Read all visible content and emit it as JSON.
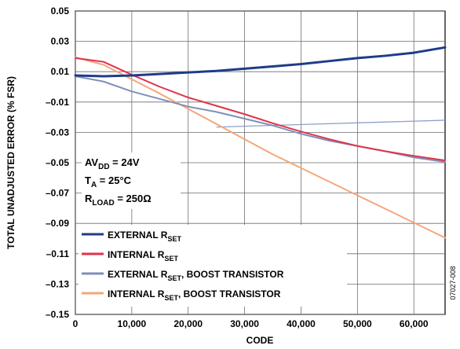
{
  "chart_data": {
    "type": "line",
    "xlabel": "CODE",
    "ylabel": "TOTAL UNADJUSTED ERROR (% FSR)",
    "xlim": [
      0,
      65535
    ],
    "ylim": [
      -0.15,
      0.05
    ],
    "xticks": [
      0,
      10000,
      20000,
      30000,
      40000,
      50000,
      60000
    ],
    "xtick_labels": [
      "0",
      "10,000",
      "20,000",
      "30,000",
      "40,000",
      "50,000",
      "60,000"
    ],
    "yticks": [
      0.05,
      0.03,
      0.01,
      -0.01,
      -0.03,
      -0.05,
      -0.07,
      -0.09,
      -0.11,
      -0.13,
      -0.15
    ],
    "ytick_labels": [
      "0.05",
      "0.03",
      "0.01",
      "–0.01",
      "–0.03",
      "–0.05",
      "–0.07",
      "–0.09",
      "–0.11",
      "–0.13",
      "–0.15"
    ],
    "grid": true,
    "legend_placement": "bottom-left",
    "conditions": {
      "avdd": {
        "main": "AV",
        "sub": "DD",
        "rest": " = 24V"
      },
      "ta": {
        "main": "T",
        "sub": "A",
        "rest": " = 25°C"
      },
      "rload": {
        "main": "R",
        "sub": "LOAD",
        "rest": " = 250Ω"
      }
    },
    "figure_id": "07027-008",
    "series": [
      {
        "name": "EXTERNAL RSET",
        "label_main": "EXTERNAL R",
        "label_sub": "SET",
        "label_rest": "",
        "color": "#1f3c88",
        "width": 3,
        "points": [
          [
            0,
            0.0075
          ],
          [
            5000,
            0.007
          ],
          [
            10000,
            0.0075
          ],
          [
            15000,
            0.0085
          ],
          [
            20000,
            0.0095
          ],
          [
            25000,
            0.0105
          ],
          [
            30000,
            0.012
          ],
          [
            35000,
            0.0135
          ],
          [
            40000,
            0.015
          ],
          [
            45000,
            0.017
          ],
          [
            50000,
            0.019
          ],
          [
            55000,
            0.0205
          ],
          [
            60000,
            0.0225
          ],
          [
            65535,
            0.026
          ]
        ]
      },
      {
        "name": "INTERNAL RSET",
        "label_main": "INTERNAL R",
        "label_sub": "SET",
        "label_rest": "",
        "color": "#e0334d",
        "width": 2,
        "points": [
          [
            0,
            0.019
          ],
          [
            5000,
            0.0165
          ],
          [
            10000,
            0.008
          ],
          [
            15000,
            0.0
          ],
          [
            20000,
            -0.007
          ],
          [
            25000,
            -0.0125
          ],
          [
            30000,
            -0.018
          ],
          [
            35000,
            -0.024
          ],
          [
            40000,
            -0.0295
          ],
          [
            45000,
            -0.0345
          ],
          [
            50000,
            -0.039
          ],
          [
            55000,
            -0.0425
          ],
          [
            60000,
            -0.0455
          ],
          [
            65535,
            -0.0485
          ]
        ]
      },
      {
        "name": "EXTERNAL RSET, BOOST TRANSISTOR",
        "label_main": "EXTERNAL R",
        "label_sub": "SET",
        "label_rest": ", BOOST TRANSISTOR",
        "color": "#7f8fb8",
        "width": 2,
        "points": [
          [
            0,
            0.007
          ],
          [
            5000,
            0.0035
          ],
          [
            10000,
            -0.003
          ],
          [
            15000,
            -0.008
          ],
          [
            20000,
            -0.013
          ],
          [
            25000,
            -0.0165
          ],
          [
            30000,
            -0.021
          ],
          [
            35000,
            -0.0255
          ],
          [
            40000,
            -0.031
          ],
          [
            45000,
            -0.0355
          ],
          [
            50000,
            -0.039
          ],
          [
            55000,
            -0.0425
          ],
          [
            60000,
            -0.0465
          ],
          [
            65535,
            -0.0495
          ]
        ]
      },
      {
        "name": "INTERNAL RSET, BOOST TRANSISTOR",
        "label_main": "INTERNAL R",
        "label_sub": "SET",
        "label_rest": ", BOOST TRANSISTOR",
        "color": "#f4a77a",
        "width": 2,
        "points": [
          [
            0,
            0.0195
          ],
          [
            5000,
            0.0145
          ],
          [
            10000,
            0.005
          ],
          [
            15000,
            -0.0045
          ],
          [
            20000,
            -0.0145
          ],
          [
            25000,
            -0.0245
          ],
          [
            30000,
            -0.0345
          ],
          [
            35000,
            -0.0445
          ],
          [
            40000,
            -0.0535
          ],
          [
            45000,
            -0.0625
          ],
          [
            50000,
            -0.0715
          ],
          [
            55000,
            -0.0805
          ],
          [
            60000,
            -0.0895
          ],
          [
            65535,
            -0.0995
          ]
        ]
      }
    ],
    "annotation_line": {
      "name": "EXTERNAL RSET, BOOST TRANSISTOR offset trace",
      "color": "#8da0c8",
      "points": [
        [
          25000,
          -0.0265
        ],
        [
          65535,
          -0.022
        ]
      ]
    }
  }
}
